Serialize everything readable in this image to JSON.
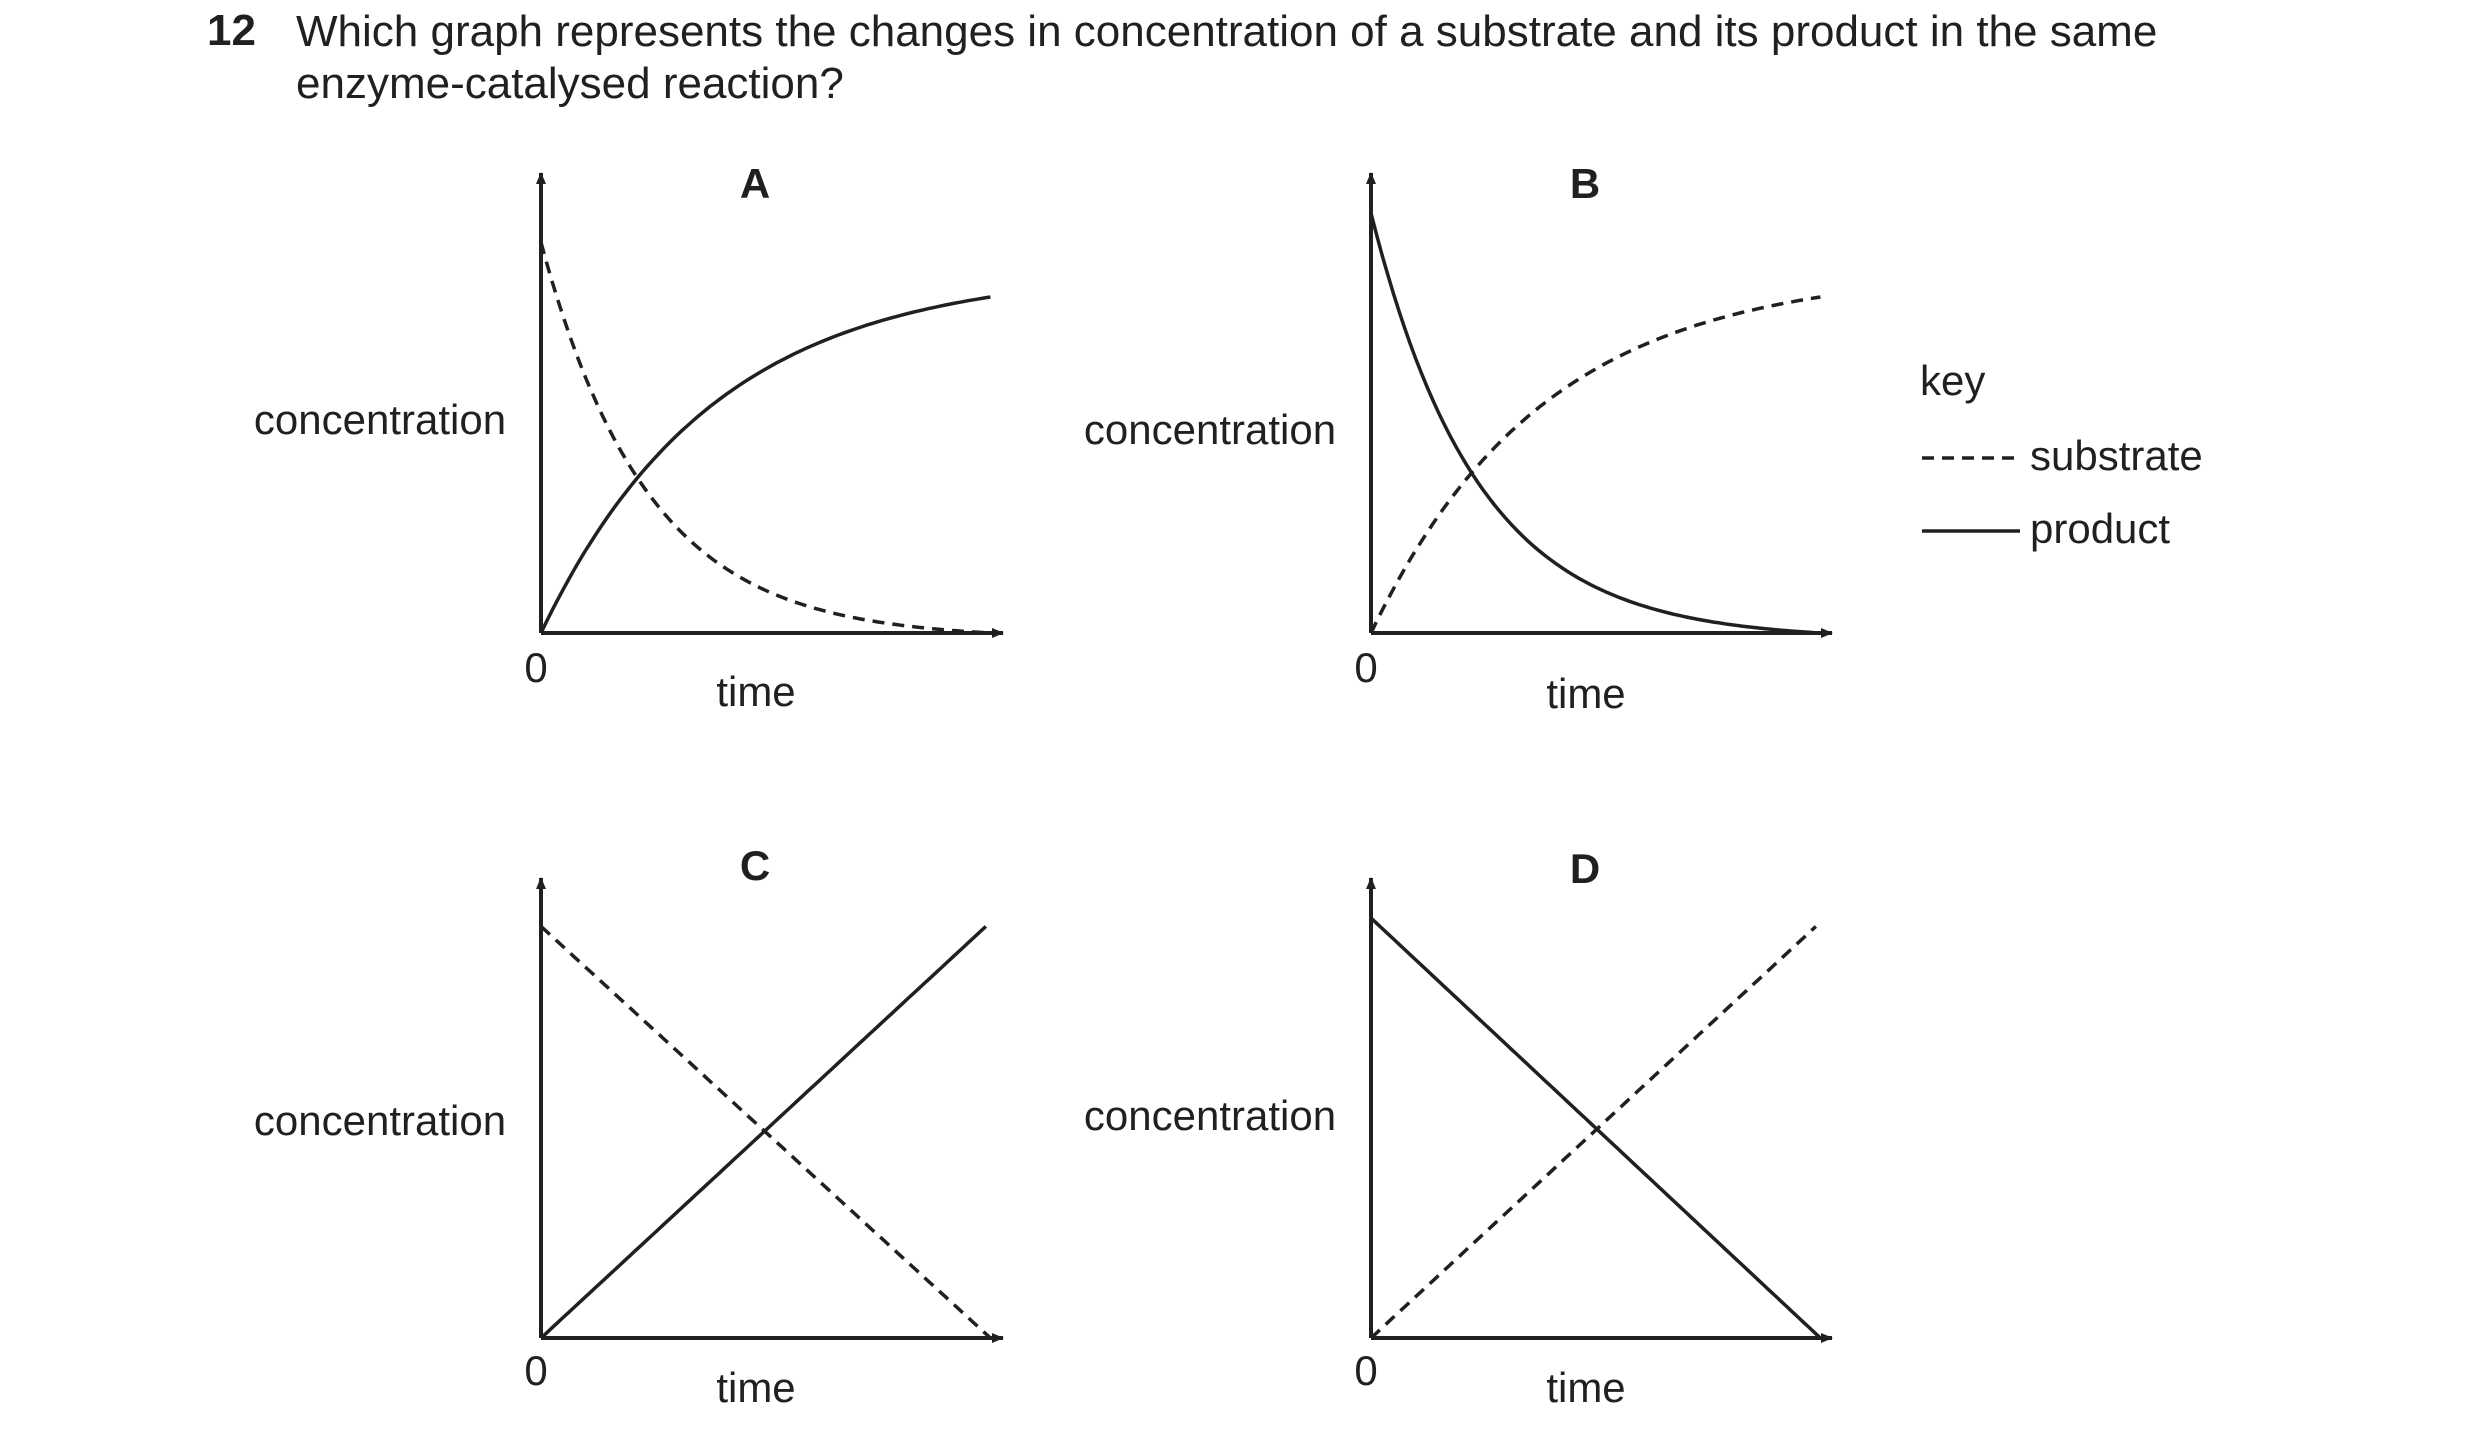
{
  "question": {
    "number": "12",
    "line1": "Which graph represents the changes in concentration of a substrate and its product in the same",
    "line2": "enzyme-catalysed reaction?"
  },
  "key": {
    "title": "key",
    "items": [
      {
        "label": "substrate",
        "style": "dashed"
      },
      {
        "label": "product",
        "style": "solid"
      }
    ]
  },
  "colors": {
    "ink": "#231f20"
  },
  "chart_data": [
    {
      "type": "line",
      "title": "A",
      "xlabel": "time",
      "ylabel": "concentration",
      "origin_label": "0",
      "series": [
        {
          "name": "substrate",
          "style": "dashed",
          "shape": "exponential-decay",
          "start": 0.93,
          "end": 0.0
        },
        {
          "name": "product",
          "style": "solid",
          "shape": "exponential-rise",
          "start": 0.0,
          "end": 0.8
        }
      ]
    },
    {
      "type": "line",
      "title": "B",
      "xlabel": "time",
      "ylabel": "concentration",
      "origin_label": "0",
      "series": [
        {
          "name": "substrate",
          "style": "dashed",
          "shape": "exponential-rise",
          "start": 0.0,
          "end": 0.8
        },
        {
          "name": "product",
          "style": "solid",
          "shape": "exponential-decay",
          "start": 1.0,
          "end": 0.0
        }
      ]
    },
    {
      "type": "line",
      "title": "C",
      "xlabel": "time",
      "ylabel": "concentration",
      "origin_label": "0",
      "series": [
        {
          "name": "substrate",
          "style": "dashed",
          "shape": "linear",
          "start": 0.98,
          "end": 0.0
        },
        {
          "name": "product",
          "style": "solid",
          "shape": "linear",
          "start": 0.0,
          "end": 0.98
        }
      ]
    },
    {
      "type": "line",
      "title": "D",
      "xlabel": "time",
      "ylabel": "concentration",
      "origin_label": "0",
      "series": [
        {
          "name": "substrate",
          "style": "dashed",
          "shape": "linear",
          "start": 0.0,
          "end": 0.98
        },
        {
          "name": "product",
          "style": "solid",
          "shape": "linear",
          "start": 1.0,
          "end": 0.0
        }
      ]
    }
  ]
}
